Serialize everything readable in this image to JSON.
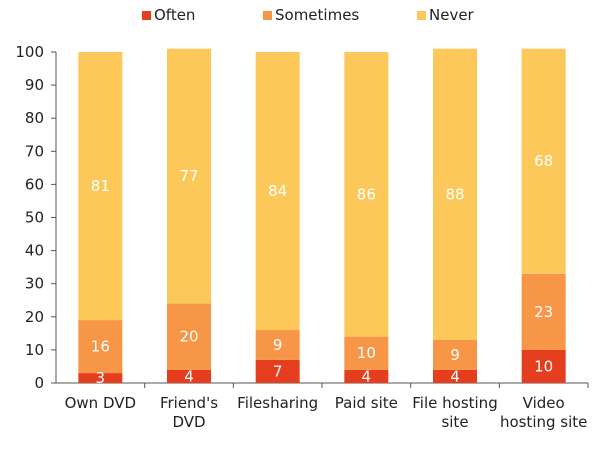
{
  "chart_data": {
    "type": "bar",
    "stacked": true,
    "title": "",
    "xlabel": "",
    "ylabel": "",
    "ylim": [
      0,
      100
    ],
    "yticks": [
      0,
      10,
      20,
      30,
      40,
      50,
      60,
      70,
      80,
      90,
      100
    ],
    "categories": [
      [
        "Own DVD"
      ],
      [
        "Friend's",
        "DVD"
      ],
      [
        "Filesharing"
      ],
      [
        "Paid site"
      ],
      [
        "File hosting",
        "site"
      ],
      [
        "Video",
        "hosting site"
      ]
    ],
    "series": [
      {
        "name": "Often",
        "color": "#e53e1f",
        "values": [
          3,
          4,
          7,
          4,
          4,
          10
        ]
      },
      {
        "name": "Sometimes",
        "color": "#f79646",
        "values": [
          16,
          20,
          9,
          10,
          9,
          23
        ]
      },
      {
        "name": "Never",
        "color": "#fcc85a",
        "values": [
          81,
          77,
          84,
          86,
          88,
          68
        ]
      }
    ],
    "legend": "top",
    "grid": false
  }
}
